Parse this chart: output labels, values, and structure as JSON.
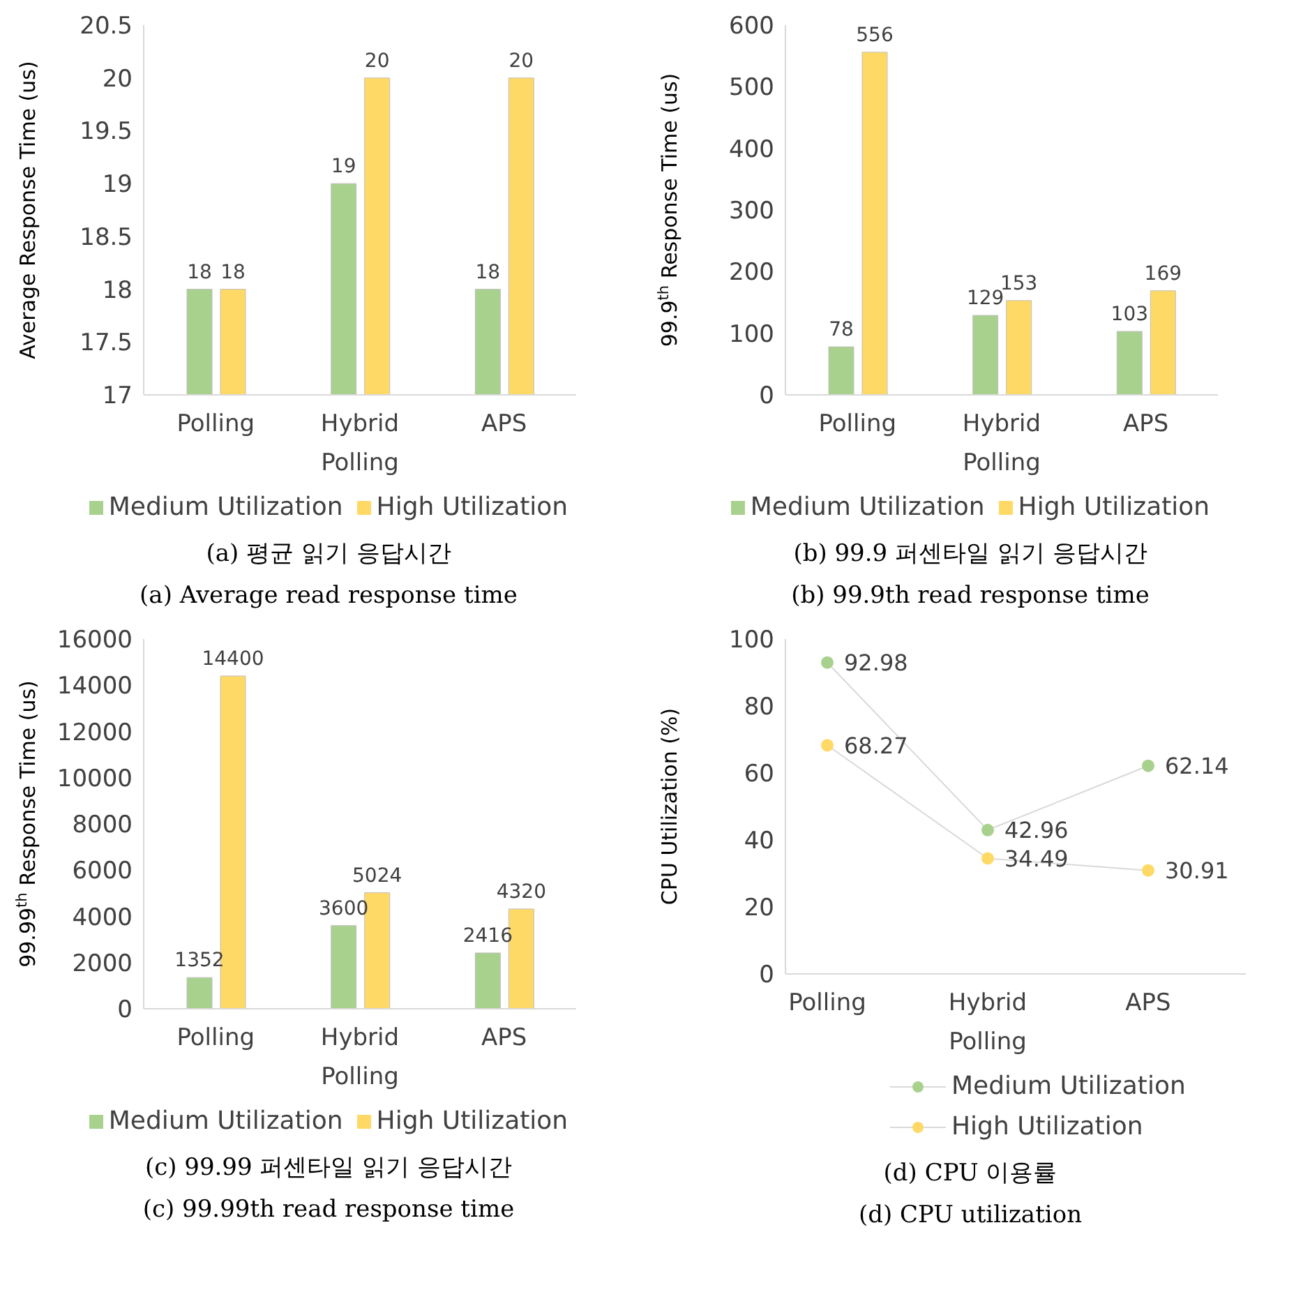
{
  "chart_data": [
    {
      "type": "bar",
      "ylabel": "Average Response Time (us)",
      "categories": [
        "Polling",
        "Hybrid Polling",
        "APS"
      ],
      "series": [
        {
          "name": "Medium Utilization",
          "color": "#a9d18e",
          "values": [
            18,
            19,
            18
          ]
        },
        {
          "name": "High Utilization",
          "color": "#ffd966",
          "values": [
            18,
            20,
            20
          ]
        }
      ],
      "ylim": [
        17,
        20.5
      ],
      "yticks": [
        17,
        17.5,
        18,
        18.5,
        19,
        19.5,
        20,
        20.5
      ],
      "data_labels": true,
      "legend": "bottom",
      "annotations": [
        "(a) 평균 읽기 응답시간",
        "(a) Average read response time"
      ]
    },
    {
      "type": "bar",
      "ylabel": "99.9$^{th}$ Response Time (us)",
      "categories": [
        "Polling",
        "Hybrid Polling",
        "APS"
      ],
      "series": [
        {
          "name": "Medium Utilization",
          "color": "#a9d18e",
          "values": [
            78,
            129,
            103
          ]
        },
        {
          "name": "High Utilization",
          "color": "#ffd966",
          "values": [
            556,
            153,
            169
          ]
        }
      ],
      "ylim": [
        0,
        600
      ],
      "yticks": [
        0,
        100,
        200,
        300,
        400,
        500,
        600
      ],
      "data_labels": true,
      "legend": "bottom",
      "annotations": [
        "(b) 99.9 퍼센타일 읽기 응답시간",
        "(b) 99.9th read response time"
      ]
    },
    {
      "type": "bar",
      "ylabel": "99.99$^{th}$ Response Time (us)",
      "categories": [
        "Polling",
        "Hybrid Polling",
        "APS"
      ],
      "series": [
        {
          "name": "Medium Utilization",
          "color": "#a9d18e",
          "values": [
            1352,
            3600,
            2416
          ]
        },
        {
          "name": "High Utilization",
          "color": "#ffd966",
          "values": [
            14400,
            5024,
            4320
          ]
        }
      ],
      "ylim": [
        0,
        16000
      ],
      "yticks": [
        0,
        2000,
        4000,
        6000,
        8000,
        10000,
        12000,
        14000,
        16000
      ],
      "data_labels": true,
      "legend": "bottom",
      "annotations": [
        "(c) 99.99 퍼센타일 읽기 응답시간",
        "(c) 99.99th read response time"
      ]
    },
    {
      "type": "line",
      "ylabel": "CPU Utilization (%)",
      "categories": [
        "Polling",
        "Hybrid Polling",
        "APS"
      ],
      "series": [
        {
          "name": "Medium Utilization",
          "color": "#a9d18e",
          "values": [
            92.98,
            42.96,
            62.14
          ]
        },
        {
          "name": "High Utilization",
          "color": "#ffd966",
          "values": [
            68.27,
            34.49,
            30.91
          ]
        }
      ],
      "ylim": [
        0,
        100
      ],
      "yticks": [
        0,
        20,
        40,
        60,
        80,
        100
      ],
      "data_labels": true,
      "marker": "circle",
      "legend": "bottom",
      "annotations": [
        "(d) CPU 이용률",
        "(d) CPU utilization"
      ]
    }
  ]
}
